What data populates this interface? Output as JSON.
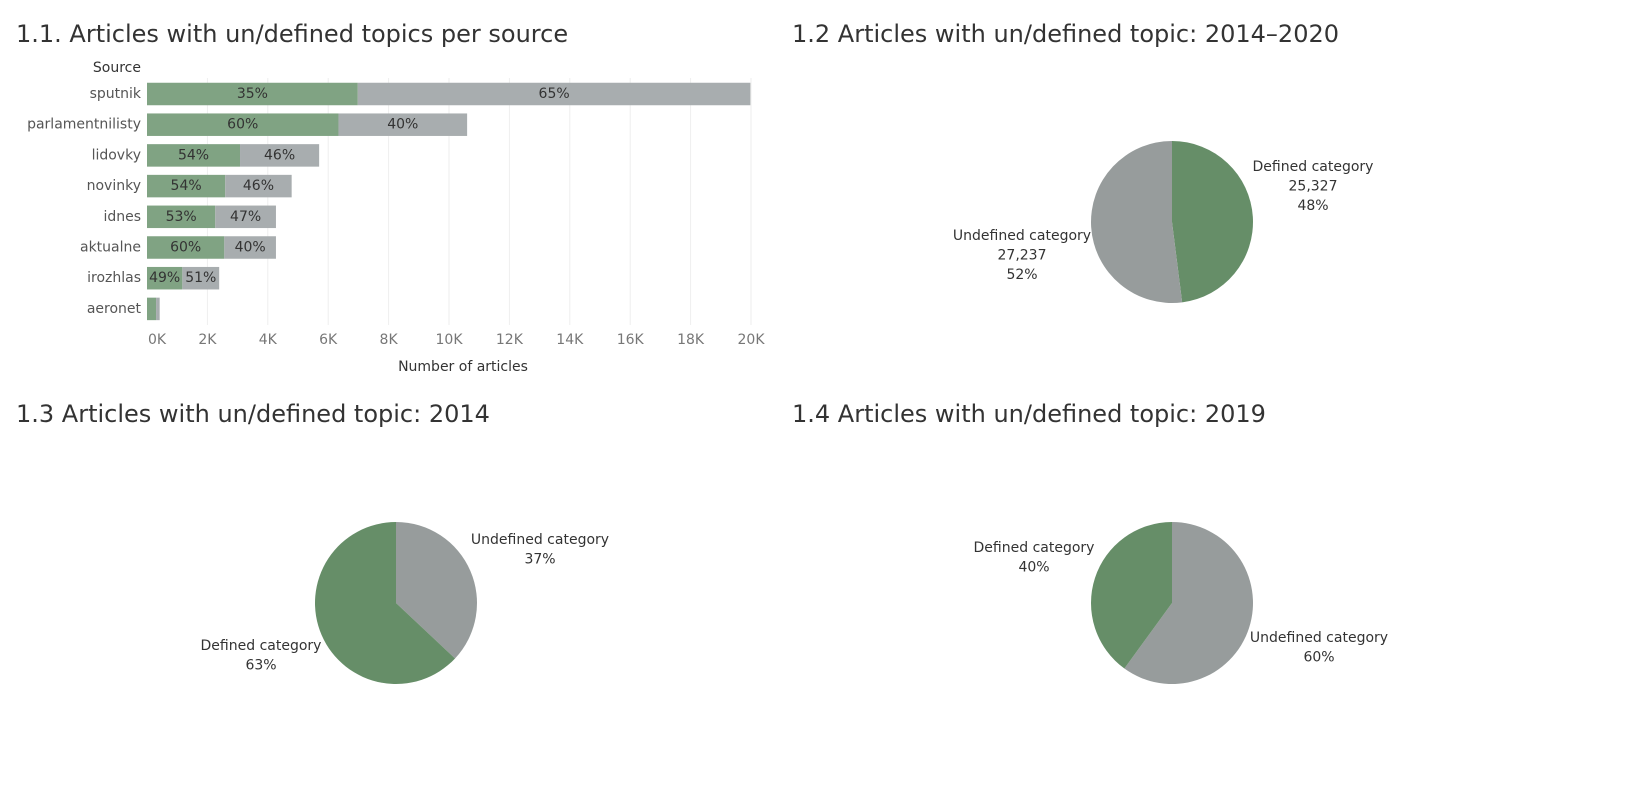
{
  "colors": {
    "bar_defined": "#80a383",
    "bar_undefined": "#a8adaf",
    "pie_defined": "#668e68",
    "pie_undefined": "#979c9c",
    "grid": "#eeeeee"
  },
  "panels": {
    "p1": {
      "title": "1.1. Articles with un/defined topics per source"
    },
    "p2": {
      "title": "1.2 Articles with un/defined topic: 2014–2020"
    },
    "p3": {
      "title": "1.3 Articles with un/defined topic: 2014"
    },
    "p4": {
      "title": "1.4 Articles with un/defined topic: 2019"
    }
  },
  "chart_data": [
    {
      "type": "bar",
      "orientation": "horizontal",
      "stacked": true,
      "title": "1.1. Articles with un/defined topics per source",
      "ylabel": "Source",
      "xlabel": "Number of articles",
      "xlim": [
        0,
        21000
      ],
      "xticks": [
        0,
        2000,
        4000,
        6000,
        8000,
        10000,
        12000,
        14000,
        16000,
        18000,
        20000
      ],
      "xtick_labels": [
        "0K",
        "2K",
        "4K",
        "6K",
        "8K",
        "10K",
        "12K",
        "14K",
        "16K",
        "18K",
        "20K"
      ],
      "grid": true,
      "categories": [
        "sputnik",
        "parlamentnilisty",
        "lidovky",
        "novinky",
        "idnes",
        "aktualne",
        "irozhlas",
        "aeronet"
      ],
      "series": [
        {
          "name": "Defined category",
          "values": [
            6980,
            6340,
            3080,
            2590,
            2260,
            2560,
            1170,
            300
          ],
          "labels": [
            "35%",
            "60%",
            "54%",
            "54%",
            "53%",
            "60%",
            "49%",
            ""
          ]
        },
        {
          "name": "Undefined category",
          "values": [
            13000,
            4260,
            2620,
            2200,
            2010,
            1710,
            1220,
            120
          ],
          "labels": [
            "65%",
            "40%",
            "46%",
            "46%",
            "47%",
            "40%",
            "51%",
            ""
          ]
        }
      ]
    },
    {
      "type": "pie",
      "title": "1.2 Articles with un/defined topic: 2014–2020",
      "slices": [
        {
          "name": "Defined category",
          "value": 25327,
          "value_label": "25,327",
          "percent": 48,
          "percent_label": "48%"
        },
        {
          "name": "Undefined category",
          "value": 27237,
          "value_label": "27,237",
          "percent": 52,
          "percent_label": "52%"
        }
      ]
    },
    {
      "type": "pie",
      "title": "1.3 Articles with un/defined topic: 2014",
      "slices": [
        {
          "name": "Undefined category",
          "percent": 37,
          "percent_label": "37%"
        },
        {
          "name": "Defined category",
          "percent": 63,
          "percent_label": "63%"
        }
      ]
    },
    {
      "type": "pie",
      "title": "1.4 Articles with un/defined topic: 2019",
      "slices": [
        {
          "name": "Defined category",
          "percent": 40,
          "percent_label": "40%"
        },
        {
          "name": "Undefined category",
          "percent": 60,
          "percent_label": "60%"
        }
      ]
    }
  ]
}
